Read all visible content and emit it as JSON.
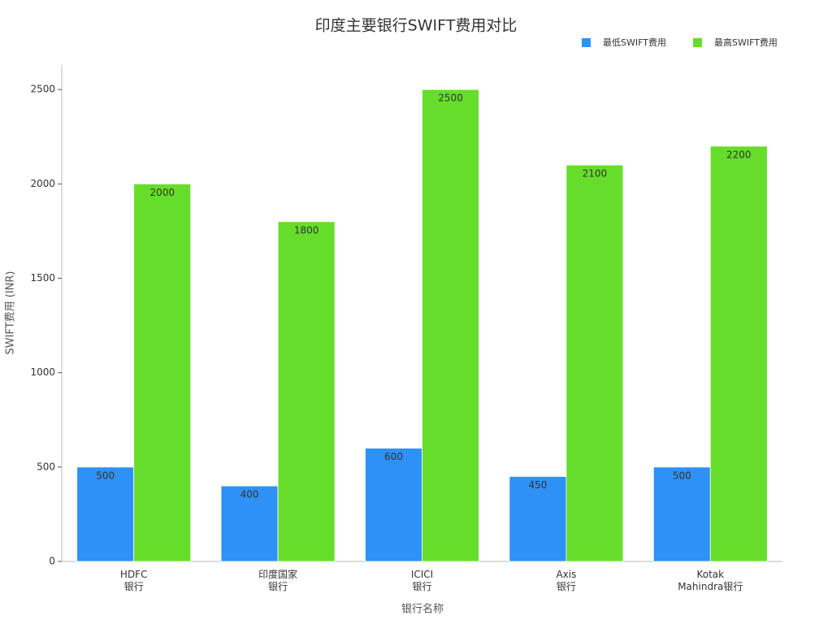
{
  "chart_data": {
    "type": "bar",
    "title": "印度主要银行SWIFT费用对比",
    "x_label": "银行名称",
    "y_label": "SWIFT费用 (INR)",
    "categories": [
      "HDFC\n银行",
      "印度国家\n银行",
      "ICICI\n银行",
      "Axis\n银行",
      "Kotak\nMahindra银行"
    ],
    "series": [
      {
        "name": "最低SWIFT费用",
        "color": "#2e91f5",
        "values": [
          500,
          400,
          600,
          450,
          500
        ]
      },
      {
        "name": "最高SWIFT费用",
        "color": "#66dd2a",
        "values": [
          2000,
          1800,
          2500,
          2100,
          2200
        ]
      }
    ],
    "ylim": [
      0,
      2630
    ],
    "yticks": [
      0,
      500,
      1000,
      1500,
      2000,
      2500
    ],
    "grid": false,
    "legend": "top-right"
  }
}
